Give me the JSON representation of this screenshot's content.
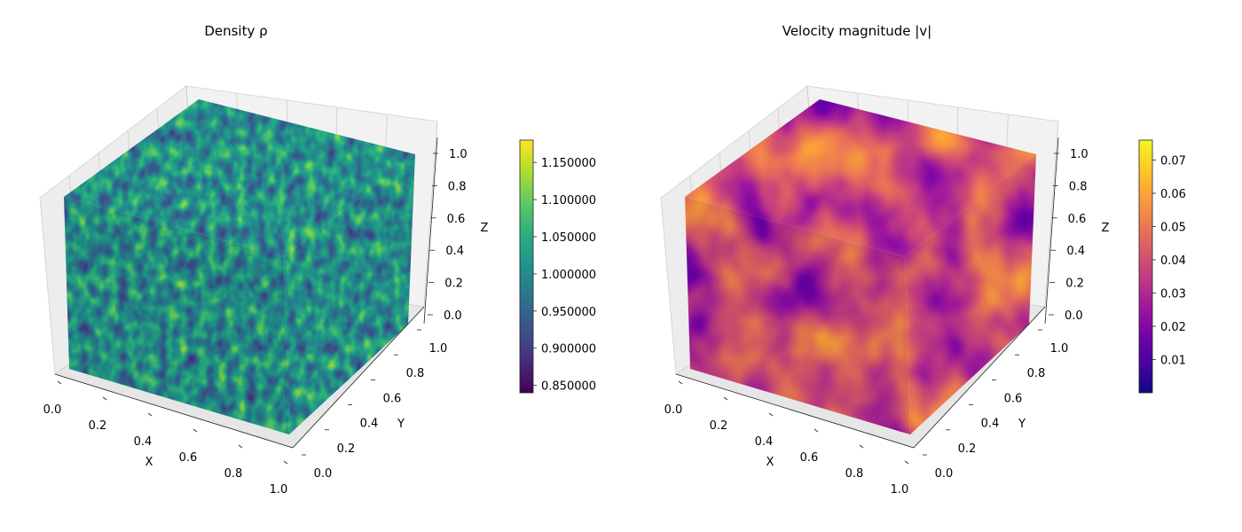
{
  "chart_data": [
    {
      "type": "heatmap",
      "variant": "3d-volume-cube",
      "title": "Density ρ",
      "xlabel": "X",
      "ylabel": "Y",
      "zlabel": "Z",
      "xlim": [
        0,
        1
      ],
      "ylim": [
        0,
        1
      ],
      "zlim": [
        0,
        1
      ],
      "xticks": [
        "0.0",
        "0.2",
        "0.4",
        "0.6",
        "0.8",
        "1.0"
      ],
      "yticks": [
        "0.0",
        "0.2",
        "0.4",
        "0.6",
        "0.8",
        "1.0"
      ],
      "zticks": [
        "0.0",
        "0.2",
        "0.4",
        "0.6",
        "0.8",
        "1.0"
      ],
      "colormap": "viridis",
      "color_range": [
        0.84,
        1.18
      ],
      "colorbar_ticks": [
        "0.850000",
        "0.900000",
        "0.950000",
        "1.000000",
        "1.050000",
        "1.100000",
        "1.150000"
      ],
      "colorbar_tick_values": [
        0.85,
        0.9,
        0.95,
        1.0,
        1.05,
        1.1,
        1.15
      ],
      "grid": true
    },
    {
      "type": "heatmap",
      "variant": "3d-volume-cube",
      "title": "Velocity magnitude |v|",
      "xlabel": "X",
      "ylabel": "Y",
      "zlabel": "Z",
      "xlim": [
        0,
        1
      ],
      "ylim": [
        0,
        1
      ],
      "zlim": [
        0,
        1
      ],
      "xticks": [
        "0.0",
        "0.2",
        "0.4",
        "0.6",
        "0.8",
        "1.0"
      ],
      "yticks": [
        "0.0",
        "0.2",
        "0.4",
        "0.6",
        "0.8",
        "1.0"
      ],
      "zticks": [
        "0.0",
        "0.2",
        "0.4",
        "0.6",
        "0.8",
        "1.0"
      ],
      "colormap": "plasma",
      "color_range": [
        0.0,
        0.076
      ],
      "colorbar_ticks": [
        "0.01",
        "0.02",
        "0.03",
        "0.04",
        "0.05",
        "0.06",
        "0.07"
      ],
      "colorbar_tick_values": [
        0.01,
        0.02,
        0.03,
        0.04,
        0.05,
        0.06,
        0.07
      ],
      "grid": true
    }
  ]
}
